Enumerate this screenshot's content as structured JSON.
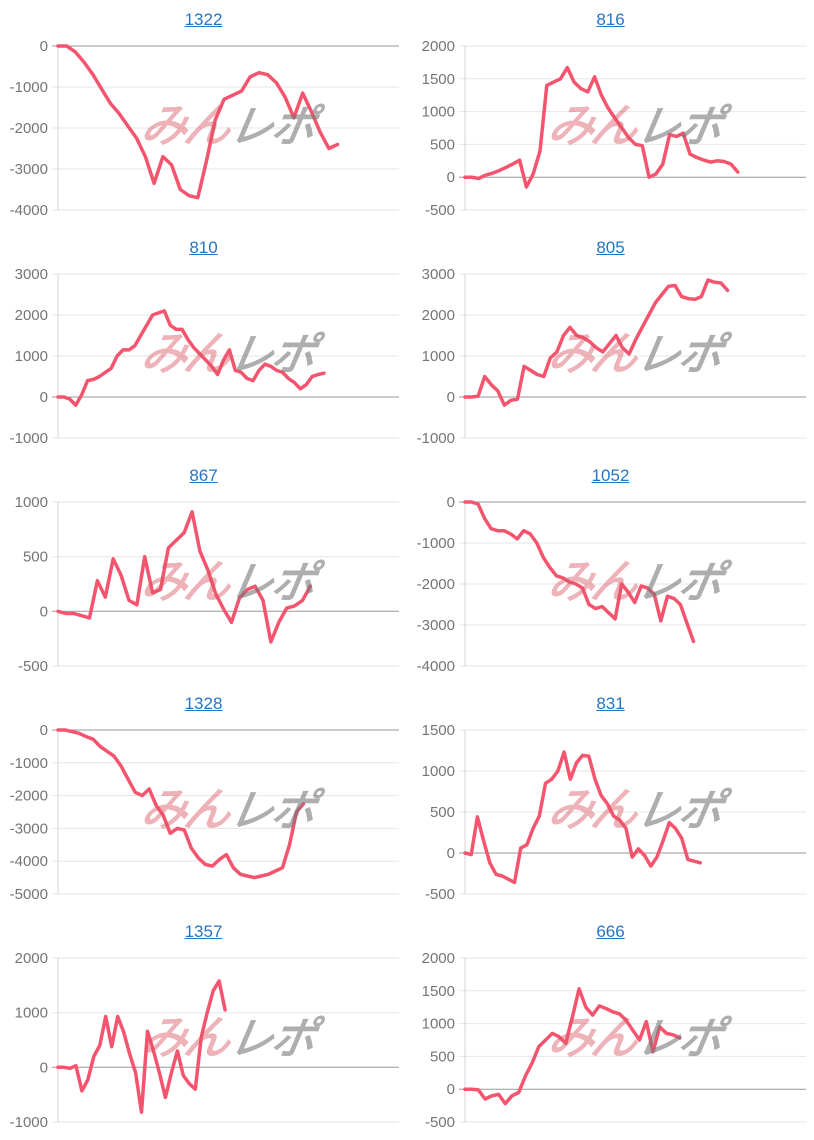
{
  "style": {
    "title_link_color": "#2575c4",
    "tick_label_color": "#757575",
    "grid_line_color": "#e6e6e6",
    "zero_line_color": "#999999",
    "axis_line_color": "#d4d4d4",
    "line_color": "#f4546e",
    "watermark_pink_color": "rgba(217,84,99,0.45)",
    "watermark_gray_color": "rgba(120,120,120,0.6)"
  },
  "watermark": {
    "pink": "みん",
    "gray": "レポ"
  },
  "chart_data": [
    {
      "type": "line",
      "title": "1322",
      "ylim": [
        -4000,
        0
      ],
      "yticks": [
        0,
        -1000,
        -2000,
        -3000,
        -4000
      ],
      "x_fill": 0.82,
      "grid": true,
      "values": [
        0,
        0,
        -150,
        -400,
        -700,
        -1050,
        -1400,
        -1650,
        -1950,
        -2250,
        -2700,
        -3350,
        -2700,
        -2900,
        -3500,
        -3650,
        -3700,
        -2800,
        -1800,
        -1300,
        -1200,
        -1100,
        -750,
        -650,
        -700,
        -900,
        -1250,
        -1750,
        -1150,
        -1600,
        -2100,
        -2500,
        -2400
      ]
    },
    {
      "type": "line",
      "title": "816",
      "ylim": [
        -500,
        2000
      ],
      "yticks": [
        2000,
        1500,
        1000,
        500,
        0,
        -500
      ],
      "x_fill": 0.8,
      "grid": true,
      "values": [
        0,
        0,
        -20,
        30,
        60,
        100,
        150,
        200,
        260,
        -150,
        50,
        400,
        1400,
        1450,
        1500,
        1670,
        1450,
        1350,
        1300,
        1530,
        1250,
        1050,
        900,
        750,
        600,
        500,
        480,
        0,
        50,
        200,
        650,
        620,
        670,
        350,
        300,
        260,
        230,
        250,
        240,
        200,
        80
      ]
    },
    {
      "type": "line",
      "title": "810",
      "ylim": [
        -1000,
        3000
      ],
      "yticks": [
        3000,
        2000,
        1000,
        0,
        -1000
      ],
      "x_fill": 0.78,
      "grid": true,
      "values": [
        0,
        0,
        -50,
        -200,
        50,
        400,
        430,
        500,
        600,
        700,
        1000,
        1150,
        1150,
        1250,
        1500,
        1750,
        2000,
        2050,
        2100,
        1750,
        1650,
        1650,
        1400,
        1200,
        1050,
        900,
        750,
        550,
        900,
        1150,
        650,
        600,
        450,
        400,
        650,
        800,
        750,
        650,
        600,
        450,
        350,
        200,
        300,
        500,
        550,
        580
      ]
    },
    {
      "type": "line",
      "title": "805",
      "ylim": [
        -1000,
        3000
      ],
      "yticks": [
        3000,
        2000,
        1000,
        0,
        -1000
      ],
      "x_fill": 0.77,
      "grid": true,
      "values": [
        0,
        0,
        20,
        500,
        300,
        150,
        -200,
        -80,
        -50,
        750,
        650,
        550,
        500,
        950,
        1100,
        1500,
        1700,
        1500,
        1450,
        1350,
        1200,
        1100,
        1300,
        1500,
        1200,
        1050,
        1400,
        1700,
        2000,
        2300,
        2500,
        2700,
        2720,
        2450,
        2400,
        2380,
        2450,
        2850,
        2800,
        2780,
        2600
      ]
    },
    {
      "type": "line",
      "title": "867",
      "ylim": [
        -500,
        1000
      ],
      "yticks": [
        1000,
        500,
        0,
        -500
      ],
      "x_fill": 0.74,
      "grid": true,
      "values": [
        0,
        -20,
        -20,
        -40,
        -60,
        280,
        130,
        480,
        330,
        100,
        60,
        500,
        170,
        200,
        580,
        650,
        720,
        910,
        550,
        380,
        160,
        20,
        -100,
        120,
        200,
        230,
        100,
        -280,
        -100,
        30,
        50,
        100,
        230
      ]
    },
    {
      "type": "line",
      "title": "1052",
      "ylim": [
        -4000,
        0
      ],
      "yticks": [
        0,
        -1000,
        -2000,
        -3000,
        -4000
      ],
      "x_fill": 0.67,
      "grid": true,
      "values": [
        0,
        0,
        -50,
        -400,
        -650,
        -700,
        -700,
        -780,
        -900,
        -700,
        -780,
        -1000,
        -1350,
        -1600,
        -1800,
        -1850,
        -1950,
        -2000,
        -2100,
        -2500,
        -2600,
        -2550,
        -2700,
        -2850,
        -2000,
        -2200,
        -2450,
        -2050,
        -2100,
        -2250,
        -2900,
        -2300,
        -2350,
        -2500,
        -2950,
        -3400
      ]
    },
    {
      "type": "line",
      "title": "1328",
      "ylim": [
        -5000,
        0
      ],
      "yticks": [
        0,
        -1000,
        -2000,
        -3000,
        -4000,
        -5000
      ],
      "x_fill": 0.72,
      "grid": true,
      "values": [
        0,
        0,
        -50,
        -100,
        -200,
        -280,
        -500,
        -650,
        -800,
        -1100,
        -1500,
        -1900,
        -2000,
        -1800,
        -2300,
        -2600,
        -3150,
        -3000,
        -3050,
        -3600,
        -3900,
        -4100,
        -4150,
        -3950,
        -3800,
        -4200,
        -4400,
        -4450,
        -4500,
        -4450,
        -4400,
        -4300,
        -4200,
        -3500,
        -2500,
        -2250
      ]
    },
    {
      "type": "line",
      "title": "831",
      "ylim": [
        -500,
        1500
      ],
      "yticks": [
        1500,
        1000,
        500,
        0,
        -500
      ],
      "x_fill": 0.69,
      "grid": true,
      "values": [
        0,
        -20,
        440,
        150,
        -120,
        -260,
        -280,
        -320,
        -360,
        60,
        100,
        300,
        450,
        850,
        900,
        1000,
        1230,
        900,
        1100,
        1190,
        1180,
        900,
        700,
        600,
        450,
        400,
        300,
        -50,
        50,
        -30,
        -160,
        -50,
        150,
        370,
        300,
        180,
        -80,
        -100,
        -120
      ]
    },
    {
      "type": "line",
      "title": "1357",
      "ylim": [
        -1000,
        2000
      ],
      "yticks": [
        2000,
        1000,
        0,
        -1000
      ],
      "x_fill": 0.49,
      "grid": true,
      "values": [
        0,
        0,
        -20,
        30,
        -430,
        -230,
        200,
        400,
        930,
        380,
        930,
        650,
        250,
        -100,
        -820,
        660,
        300,
        -100,
        -550,
        -100,
        300,
        -150,
        -300,
        -400,
        550,
        1000,
        1400,
        1580,
        1050
      ]
    },
    {
      "type": "line",
      "title": "666",
      "ylim": [
        -500,
        2000
      ],
      "yticks": [
        2000,
        1500,
        1000,
        500,
        0,
        -500
      ],
      "x_fill": 0.63,
      "grid": true,
      "values": [
        0,
        0,
        -10,
        -150,
        -100,
        -80,
        -220,
        -100,
        -50,
        200,
        400,
        650,
        750,
        850,
        800,
        700,
        1100,
        1530,
        1250,
        1130,
        1270,
        1230,
        1180,
        1150,
        1050,
        900,
        750,
        1030,
        570,
        950,
        850,
        830,
        780
      ]
    }
  ]
}
